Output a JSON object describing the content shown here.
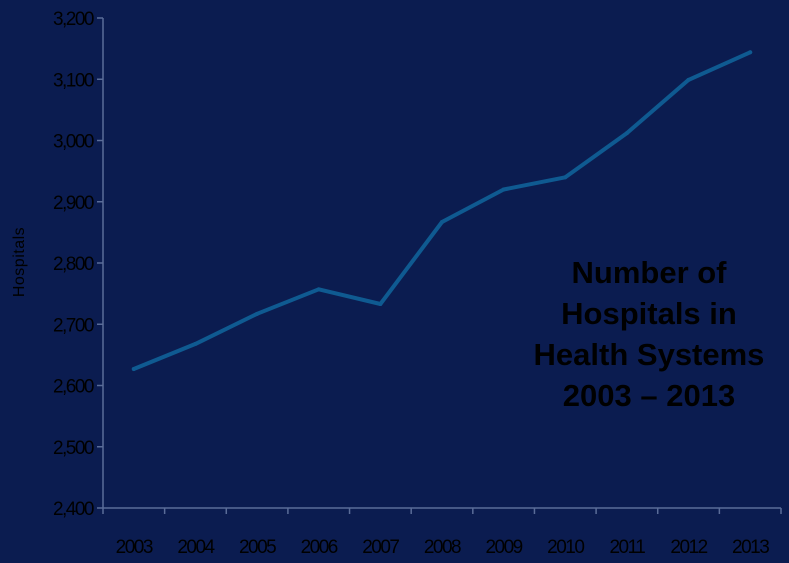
{
  "chart_data": {
    "type": "line",
    "title": "",
    "xlabel": "",
    "ylabel": "Hospitals",
    "ylim": [
      2400,
      3200
    ],
    "yticks": [
      "2,400",
      "2,500",
      "2,600",
      "2,700",
      "2,800",
      "2,900",
      "3,000",
      "3,100",
      "3,200"
    ],
    "ytick_values": [
      2400,
      2500,
      2600,
      2700,
      2800,
      2900,
      3000,
      3100,
      3200
    ],
    "categories": [
      "2003",
      "2004",
      "2005",
      "2006",
      "2007",
      "2008",
      "2009",
      "2010",
      "2011",
      "2012",
      "2013"
    ],
    "series": [
      {
        "values": [
          2627,
          2668,
          2717,
          2757,
          2733,
          2867,
          2920,
          2940,
          3012,
          3099,
          3144
        ]
      }
    ],
    "annotation": [
      "Number of",
      "Hospitals in",
      "Health Systems",
      "2003 – 2013"
    ],
    "grid": false,
    "colors": {
      "background": "#0b1c50",
      "line": "#0f5a91",
      "axis": "#5a6c98",
      "text": "#000000"
    }
  }
}
